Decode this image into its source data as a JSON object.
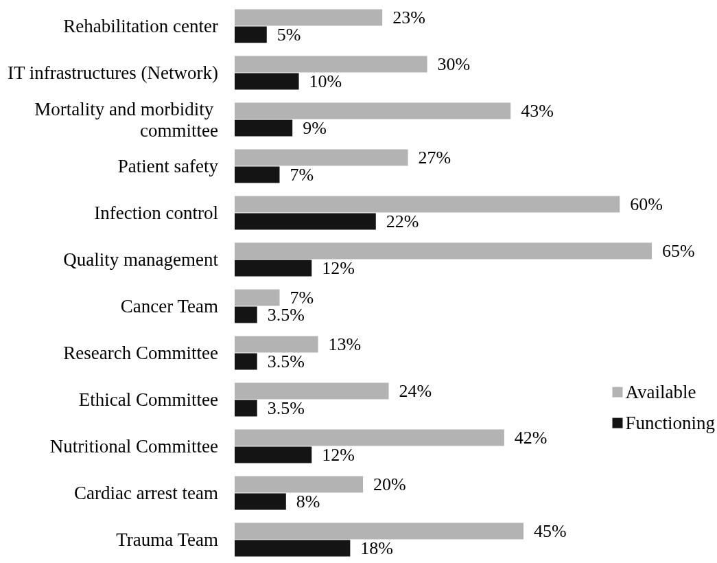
{
  "chart_data": {
    "type": "bar",
    "orientation": "horizontal",
    "categories": [
      "Rehabilitation center",
      "IT infrastructures (Network)",
      "Mortality and morbidity committee",
      "Patient safety",
      "Infection control",
      "Quality management",
      "Cancer Team",
      "Research Committee",
      "Ethical Committee",
      "Nutritional Committee",
      "Cardiac arrest team",
      "Trauma Team"
    ],
    "series": [
      {
        "name": "Available",
        "color": "#b3b3b3",
        "values": [
          23,
          30,
          43,
          27,
          60,
          65,
          7,
          13,
          24,
          42,
          20,
          45
        ],
        "value_labels": [
          "23%",
          "30%",
          "43%",
          "27%",
          "60%",
          "65%",
          "7%",
          "13%",
          "24%",
          "42%",
          "20%",
          "45%"
        ]
      },
      {
        "name": "Functioning",
        "color": "#141414",
        "values": [
          5,
          10,
          9,
          7,
          22,
          12,
          3.5,
          3.5,
          3.5,
          12,
          8,
          18
        ],
        "value_labels": [
          "5%",
          "10%",
          "9%",
          "7%",
          "22%",
          "12%",
          "3.5%",
          "3.5%",
          "3.5%",
          "12%",
          "8%",
          "18%"
        ]
      }
    ],
    "legend": "right",
    "tick_labels": "y"
  }
}
